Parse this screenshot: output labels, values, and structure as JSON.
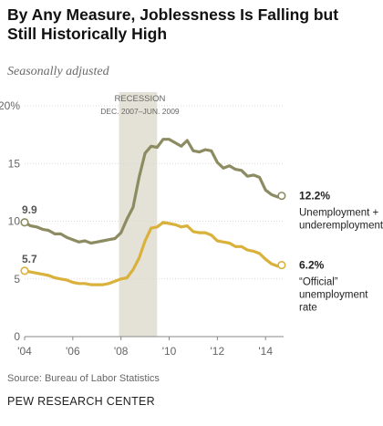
{
  "header": {
    "title": "By Any Measure, Joblessness Is Falling but Still Historically High",
    "subtitle": "Seasonally adjusted"
  },
  "footer": {
    "source": "Source: Bureau of Labor Statistics",
    "brand": "PEW RESEARCH CENTER"
  },
  "colors": {
    "u6": "#8c8b62",
    "official": "#d9b13b",
    "recession": "#e4e2d6",
    "axis": "#888888",
    "grid": "#d8d8d8"
  },
  "chart_data": {
    "type": "line",
    "title": "By Any Measure, Joblessness Is Falling but Still Historically High",
    "subtitle": "Seasonally adjusted",
    "xlabel": "",
    "ylabel": "",
    "xlim": [
      2004.0,
      2014.75
    ],
    "ylim": [
      0,
      20
    ],
    "y_ticks": [
      0,
      5,
      10,
      15,
      20
    ],
    "y_tick_labels": [
      "0",
      "5",
      "10",
      "15",
      "20%"
    ],
    "x_ticks": [
      2004,
      2006,
      2008,
      2010,
      2012,
      2014
    ],
    "x_tick_labels": [
      "'04",
      "'06",
      "'08",
      "'10",
      "'12",
      "'14"
    ],
    "grid": true,
    "recession": {
      "label": "RECESSION",
      "dates": "DEC. 2007–JUN. 2009",
      "start": 2007.92,
      "end": 2009.5
    },
    "series": [
      {
        "name": "Unemployment + underemployment",
        "color": "#8c8b62",
        "start_label": "9.9",
        "end_value_label": "12.2%",
        "end_text": [
          "Unemployment +",
          "underemployment"
        ],
        "x": [
          2004.0,
          2004.25,
          2004.5,
          2004.75,
          2005.0,
          2005.25,
          2005.5,
          2005.75,
          2006.0,
          2006.25,
          2006.5,
          2006.75,
          2007.0,
          2007.25,
          2007.5,
          2007.75,
          2008.0,
          2008.25,
          2008.5,
          2008.75,
          2009.0,
          2009.25,
          2009.5,
          2009.75,
          2010.0,
          2010.25,
          2010.5,
          2010.75,
          2011.0,
          2011.25,
          2011.5,
          2011.75,
          2012.0,
          2012.25,
          2012.5,
          2012.75,
          2013.0,
          2013.25,
          2013.5,
          2013.75,
          2014.0,
          2014.25,
          2014.5,
          2014.67
        ],
        "values": [
          9.9,
          9.6,
          9.5,
          9.3,
          9.2,
          8.9,
          8.9,
          8.6,
          8.4,
          8.2,
          8.3,
          8.1,
          8.2,
          8.3,
          8.4,
          8.5,
          9.0,
          10.2,
          11.2,
          13.8,
          15.9,
          16.5,
          16.4,
          17.1,
          17.1,
          16.8,
          16.5,
          17.0,
          16.1,
          16.0,
          16.2,
          16.1,
          15.1,
          14.6,
          14.8,
          14.5,
          14.4,
          13.9,
          14.0,
          13.8,
          12.7,
          12.3,
          12.1,
          12.2
        ]
      },
      {
        "name": "“Official” unemployment rate",
        "color": "#d9b13b",
        "start_label": "5.7",
        "end_value_label": "6.2%",
        "end_text": [
          "“Official”",
          "unemployment",
          "rate"
        ],
        "x": [
          2004.0,
          2004.25,
          2004.5,
          2004.75,
          2005.0,
          2005.25,
          2005.5,
          2005.75,
          2006.0,
          2006.25,
          2006.5,
          2006.75,
          2007.0,
          2007.25,
          2007.5,
          2007.75,
          2008.0,
          2008.25,
          2008.5,
          2008.75,
          2009.0,
          2009.25,
          2009.5,
          2009.75,
          2010.0,
          2010.25,
          2010.5,
          2010.75,
          2011.0,
          2011.25,
          2011.5,
          2011.75,
          2012.0,
          2012.25,
          2012.5,
          2012.75,
          2013.0,
          2013.25,
          2013.5,
          2013.75,
          2014.0,
          2014.25,
          2014.5,
          2014.67
        ],
        "values": [
          5.7,
          5.6,
          5.5,
          5.4,
          5.3,
          5.1,
          5.0,
          4.9,
          4.7,
          4.6,
          4.6,
          4.5,
          4.5,
          4.5,
          4.6,
          4.8,
          5.0,
          5.1,
          5.8,
          6.8,
          8.3,
          9.4,
          9.5,
          9.9,
          9.8,
          9.7,
          9.5,
          9.6,
          9.1,
          9.0,
          9.0,
          8.8,
          8.3,
          8.2,
          8.1,
          7.8,
          7.8,
          7.5,
          7.4,
          7.2,
          6.7,
          6.3,
          6.1,
          6.2
        ]
      }
    ]
  }
}
